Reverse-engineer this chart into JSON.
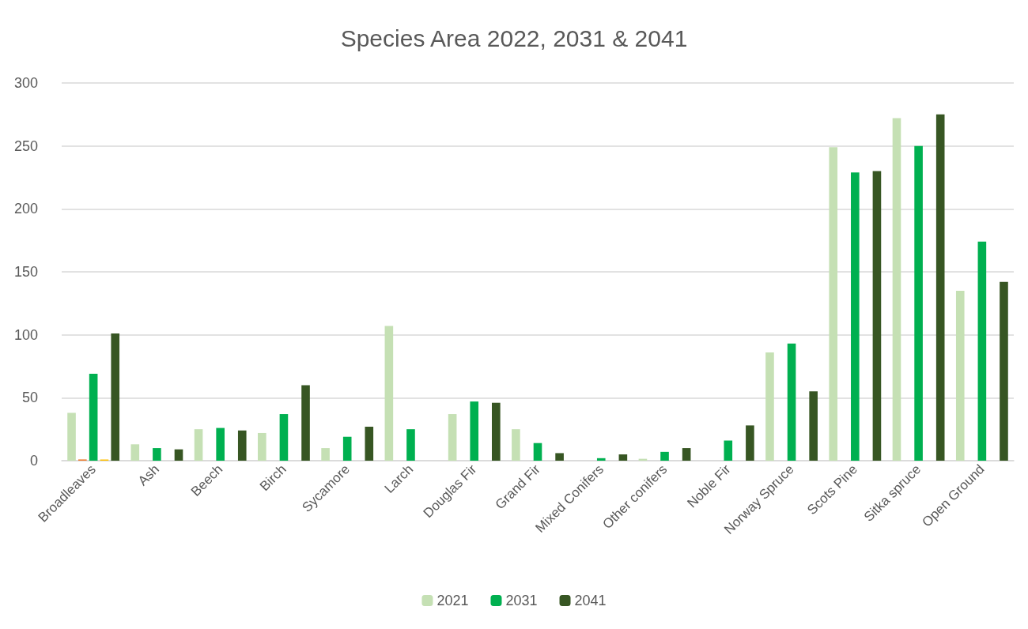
{
  "chart_data": {
    "type": "bar",
    "title": "Species Area 2022, 2031 & 2041",
    "categories": [
      "Broadleaves",
      "Ash",
      "Beech",
      "Birch",
      "Sycamore",
      "Larch",
      "Douglas Fir",
      "Grand Fir",
      "Mixed Conifers",
      "Other conifers",
      "Noble Fir",
      "Norway Spruce",
      "Scots Pine",
      "Sitka spruce",
      "Open Ground"
    ],
    "series": [
      {
        "name": "2021",
        "color": "#c5e0b4",
        "values": [
          38,
          13,
          25,
          22,
          10,
          107,
          37,
          25,
          null,
          1.5,
          null,
          86,
          249,
          272,
          135
        ]
      },
      {
        "color": "#ed7d31",
        "values": [
          1,
          null,
          null,
          null,
          null,
          null,
          null,
          null,
          null,
          null,
          null,
          null,
          null,
          null,
          null
        ]
      },
      {
        "name": "2031",
        "color": "#00b050",
        "values": [
          69,
          10,
          26,
          37,
          19,
          25,
          47,
          14,
          2,
          7,
          16,
          93,
          229,
          250,
          174
        ]
      },
      {
        "color": "#ffc000",
        "values": [
          1,
          null,
          null,
          null,
          null,
          null,
          null,
          null,
          null,
          null,
          null,
          null,
          null,
          null,
          null
        ]
      },
      {
        "name": "2041",
        "color": "#375623",
        "values": [
          101,
          9,
          24,
          60,
          27,
          null,
          46,
          6,
          5,
          10,
          28,
          55,
          230,
          275,
          142
        ]
      }
    ],
    "ylim": [
      0,
      300
    ],
    "yticks": [
      0,
      50,
      100,
      150,
      200,
      250,
      300
    ],
    "grid": "y",
    "legend": "bottom"
  }
}
